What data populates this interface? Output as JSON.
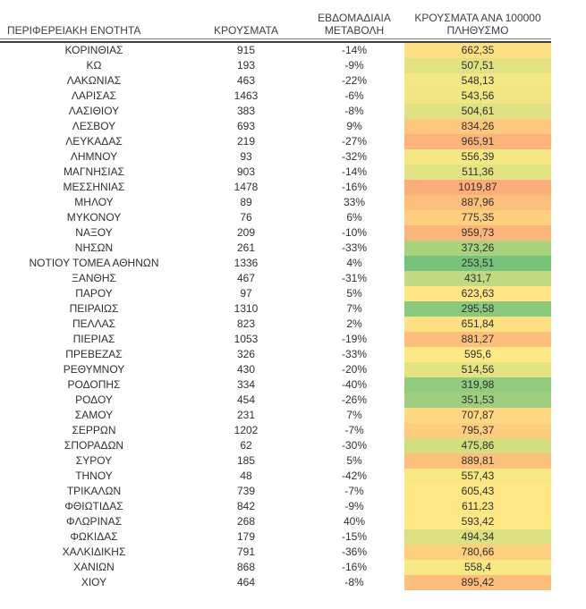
{
  "chart_data": {
    "type": "table",
    "title": "",
    "columns": [
      "ΠΕΡΙΦΕΡΕΙΑΚΗ ΕΝΟΤΗΤΑ",
      "ΚΡΟΥΣΜΑΤΑ",
      "ΕΒΔΟΜΑΔΙΑΙΑ ΜΕΤΑΒΟΛΗ",
      "ΚΡΟΥΣΜΑΤΑ ΑΝΑ 100000 ΠΛΗΘΥΣΜΟ"
    ],
    "rows": [
      {
        "region": "ΚΟΡΙΝΘΙΑΣ",
        "cases": "915",
        "weekly_change": "-14%",
        "per_100k": "662,35"
      },
      {
        "region": "ΚΩ",
        "cases": "193",
        "weekly_change": "-9%",
        "per_100k": "507,51"
      },
      {
        "region": "ΛΑΚΩΝΙΑΣ",
        "cases": "463",
        "weekly_change": "-22%",
        "per_100k": "548,13"
      },
      {
        "region": "ΛΑΡΙΣΑΣ",
        "cases": "1463",
        "weekly_change": "-6%",
        "per_100k": "543,56"
      },
      {
        "region": "ΛΑΣΙΘΙΟΥ",
        "cases": "383",
        "weekly_change": "-8%",
        "per_100k": "504,61"
      },
      {
        "region": "ΛΕΣΒΟΥ",
        "cases": "693",
        "weekly_change": "9%",
        "per_100k": "834,26"
      },
      {
        "region": "ΛΕΥΚΑΔΑΣ",
        "cases": "219",
        "weekly_change": "-27%",
        "per_100k": "965,91"
      },
      {
        "region": "ΛΗΜΝΟΥ",
        "cases": "93",
        "weekly_change": "-32%",
        "per_100k": "556,39"
      },
      {
        "region": "ΜΑΓΝΗΣΙΑΣ",
        "cases": "903",
        "weekly_change": "-14%",
        "per_100k": "511,36"
      },
      {
        "region": "ΜΕΣΣΗΝΙΑΣ",
        "cases": "1478",
        "weekly_change": "-16%",
        "per_100k": "1019,87"
      },
      {
        "region": "ΜΗΛΟΥ",
        "cases": "89",
        "weekly_change": "33%",
        "per_100k": "887,96"
      },
      {
        "region": "ΜΥΚΟΝΟΥ",
        "cases": "76",
        "weekly_change": "6%",
        "per_100k": "775,35"
      },
      {
        "region": "ΝΑΞΟΥ",
        "cases": "209",
        "weekly_change": "-10%",
        "per_100k": "959,73"
      },
      {
        "region": "ΝΗΣΩΝ",
        "cases": "261",
        "weekly_change": "-33%",
        "per_100k": "373,26"
      },
      {
        "region": "ΝΟΤΙΟΥ ΤΟΜΕΑ ΑΘΗΝΩΝ",
        "cases": "1336",
        "weekly_change": "4%",
        "per_100k": "253,51"
      },
      {
        "region": "ΞΑΝΘΗΣ",
        "cases": "467",
        "weekly_change": "-31%",
        "per_100k": "431,7"
      },
      {
        "region": "ΠΑΡΟΥ",
        "cases": "97",
        "weekly_change": "5%",
        "per_100k": "623,63"
      },
      {
        "region": "ΠΕΙΡΑΙΩΣ",
        "cases": "1310",
        "weekly_change": "7%",
        "per_100k": "295,58"
      },
      {
        "region": "ΠΕΛΛΑΣ",
        "cases": "823",
        "weekly_change": "2%",
        "per_100k": "651,84"
      },
      {
        "region": "ΠΙΕΡΙΑΣ",
        "cases": "1053",
        "weekly_change": "-19%",
        "per_100k": "881,27"
      },
      {
        "region": "ΠΡΕΒΕΖΑΣ",
        "cases": "326",
        "weekly_change": "-33%",
        "per_100k": "595,6"
      },
      {
        "region": "ΡΕΘΥΜΝΟΥ",
        "cases": "430",
        "weekly_change": "-20%",
        "per_100k": "514,56"
      },
      {
        "region": "ΡΟΔΟΠΗΣ",
        "cases": "334",
        "weekly_change": "-40%",
        "per_100k": "319,98"
      },
      {
        "region": "ΡΟΔΟΥ",
        "cases": "454",
        "weekly_change": "-26%",
        "per_100k": "351,53"
      },
      {
        "region": "ΣΑΜΟΥ",
        "cases": "231",
        "weekly_change": "7%",
        "per_100k": "707,87"
      },
      {
        "region": "ΣΕΡΡΩΝ",
        "cases": "1202",
        "weekly_change": "-7%",
        "per_100k": "795,37"
      },
      {
        "region": "ΣΠΟΡΑΔΩΝ",
        "cases": "62",
        "weekly_change": "-30%",
        "per_100k": "475,86"
      },
      {
        "region": "ΣΥΡΟΥ",
        "cases": "185",
        "weekly_change": "5%",
        "per_100k": "889,81"
      },
      {
        "region": "ΤΗΝΟΥ",
        "cases": "48",
        "weekly_change": "-42%",
        "per_100k": "557,43"
      },
      {
        "region": "ΤΡΙΚΑΛΩΝ",
        "cases": "739",
        "weekly_change": "-7%",
        "per_100k": "605,43"
      },
      {
        "region": "ΦΘΙΩΤΙΔΑΣ",
        "cases": "842",
        "weekly_change": "-9%",
        "per_100k": "611,23"
      },
      {
        "region": "ΦΛΩΡΙΝΑΣ",
        "cases": "268",
        "weekly_change": "40%",
        "per_100k": "593,42"
      },
      {
        "region": "ΦΩΚΙΔΑΣ",
        "cases": "179",
        "weekly_change": "-15%",
        "per_100k": "494,34"
      },
      {
        "region": "ΧΑΛΚΙΔΙΚΗΣ",
        "cases": "791",
        "weekly_change": "-36%",
        "per_100k": "780,66"
      },
      {
        "region": "ΧΑΝΙΩΝ",
        "cases": "868",
        "weekly_change": "-16%",
        "per_100k": "558,4"
      },
      {
        "region": "ΧΙΟΥ",
        "cases": "464",
        "weekly_change": "-8%",
        "per_100k": "895,42"
      }
    ],
    "layout_hints": {
      "heatmap_column": "ΚΡΟΥΣΜΑΤΑ ΑΝΑ 100000 ΠΛΗΘΥΣΜΟ",
      "gridlines": "none",
      "header_border": "double"
    }
  },
  "color_scale": {
    "min_value": 207,
    "mid_value": 580,
    "max_value": 1500,
    "min_color": "#63BE7B",
    "mid_color": "#FFEB84",
    "max_color": "#F8696B"
  }
}
